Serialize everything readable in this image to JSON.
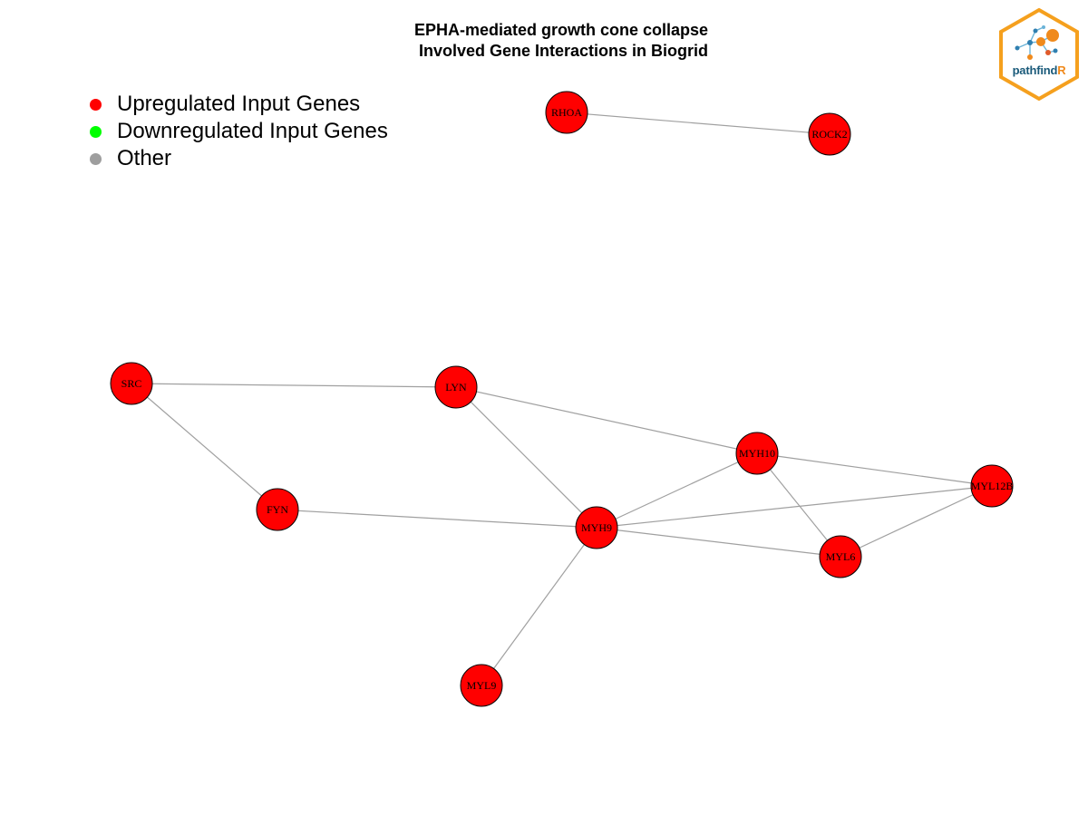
{
  "title": {
    "line1": "EPHA-mediated growth cone collapse",
    "line2": " Involved Gene Interactions in Biogrid"
  },
  "legend": [
    {
      "label": "Upregulated Input Genes",
      "color": "#ff0000"
    },
    {
      "label": "Downregulated Input Genes",
      "color": "#00ff00"
    },
    {
      "label": "Other",
      "color": "#9e9e9e"
    }
  ],
  "logo": {
    "text_main": "pathfind",
    "text_accent": "R"
  },
  "network": {
    "node_color": "#ff0000",
    "edge_color": "#a0a0a0",
    "nodes": [
      {
        "id": "RHOA",
        "label": "RHOA",
        "status": "upregulated"
      },
      {
        "id": "ROCK2",
        "label": "ROCK2",
        "status": "upregulated"
      },
      {
        "id": "SRC",
        "label": "SRC",
        "status": "upregulated"
      },
      {
        "id": "LYN",
        "label": "LYN",
        "status": "upregulated"
      },
      {
        "id": "FYN",
        "label": "FYN",
        "status": "upregulated"
      },
      {
        "id": "MYH10",
        "label": "MYH10",
        "status": "upregulated"
      },
      {
        "id": "MYH9",
        "label": "MYH9",
        "status": "upregulated"
      },
      {
        "id": "MYL12B",
        "label": "MYL12B",
        "status": "upregulated"
      },
      {
        "id": "MYL6",
        "label": "MYL6",
        "status": "upregulated"
      },
      {
        "id": "MYL9",
        "label": "MYL9",
        "status": "upregulated"
      }
    ],
    "edges": [
      [
        "RHOA",
        "ROCK2"
      ],
      [
        "SRC",
        "LYN"
      ],
      [
        "SRC",
        "FYN"
      ],
      [
        "LYN",
        "MYH10"
      ],
      [
        "LYN",
        "MYH9"
      ],
      [
        "FYN",
        "MYH9"
      ],
      [
        "MYH9",
        "MYH10"
      ],
      [
        "MYH9",
        "MYL12B"
      ],
      [
        "MYH9",
        "MYL6"
      ],
      [
        "MYH9",
        "MYL9"
      ],
      [
        "MYH10",
        "MYL12B"
      ],
      [
        "MYH10",
        "MYL6"
      ],
      [
        "MYL6",
        "MYL12B"
      ]
    ]
  }
}
